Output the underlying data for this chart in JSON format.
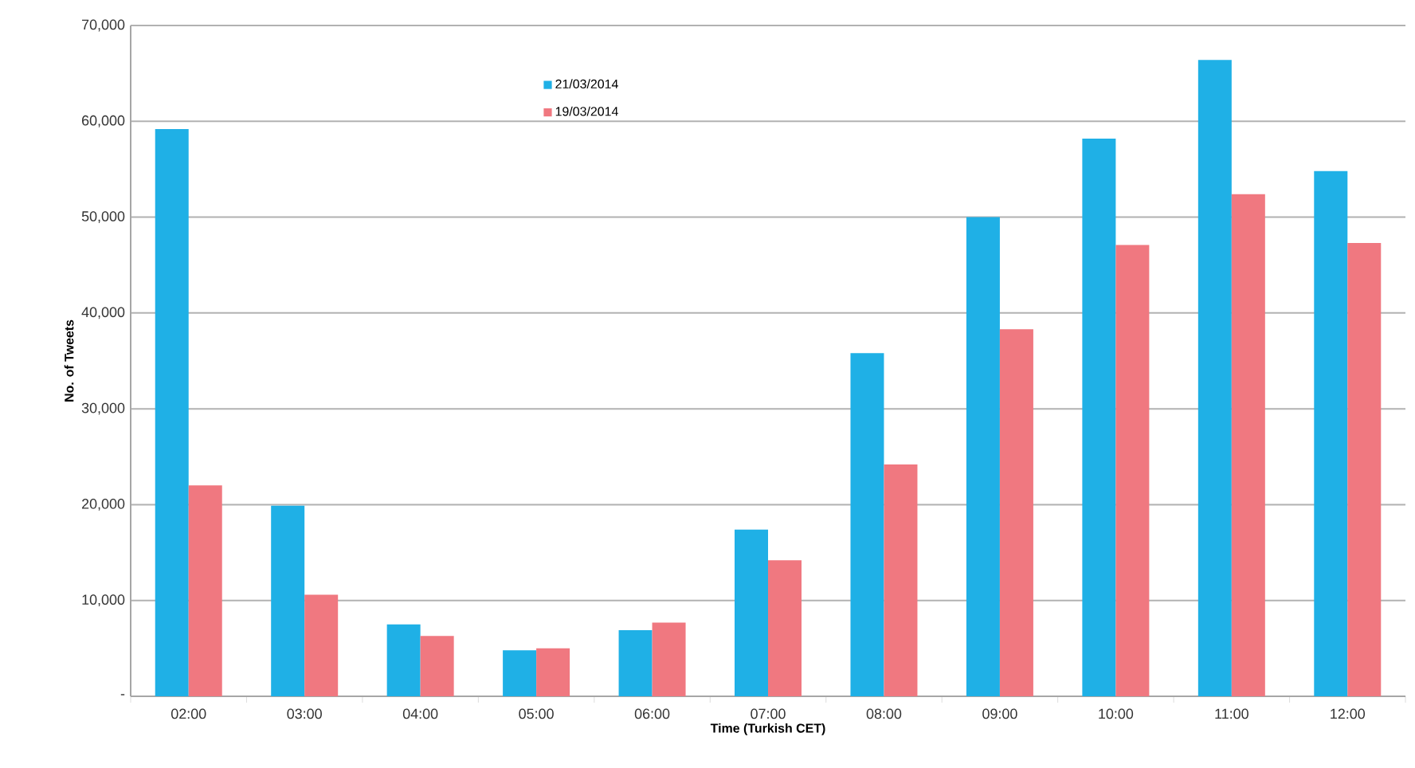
{
  "chart_data": {
    "type": "bar",
    "xlabel": "Time (Turkish CET)",
    "ylabel": "No. of Tweets",
    "categories": [
      "02:00",
      "03:00",
      "04:00",
      "05:00",
      "06:00",
      "07:00",
      "08:00",
      "09:00",
      "10:00",
      "11:00",
      "12:00"
    ],
    "series": [
      {
        "name": "21/03/2014",
        "color": "#1fb0e6",
        "values": [
          59200,
          19900,
          7500,
          4800,
          6900,
          17400,
          35800,
          50000,
          58200,
          66400,
          54800
        ]
      },
      {
        "name": "19/03/2014",
        "color": "#f07880",
        "values": [
          22000,
          10600,
          6300,
          5000,
          7700,
          14200,
          24200,
          38300,
          47100,
          52400,
          47300
        ]
      }
    ],
    "ylim": [
      0,
      70000
    ],
    "yticks": [
      {
        "value": 0,
        "label": "-"
      },
      {
        "value": 10000,
        "label": "10,000"
      },
      {
        "value": 20000,
        "label": "20,000"
      },
      {
        "value": 30000,
        "label": "30,000"
      },
      {
        "value": 40000,
        "label": "40,000"
      },
      {
        "value": 50000,
        "label": "50,000"
      },
      {
        "value": 60000,
        "label": "60,000"
      },
      {
        "value": 70000,
        "label": "70,000"
      }
    ],
    "grid": "y",
    "legend": "top"
  }
}
